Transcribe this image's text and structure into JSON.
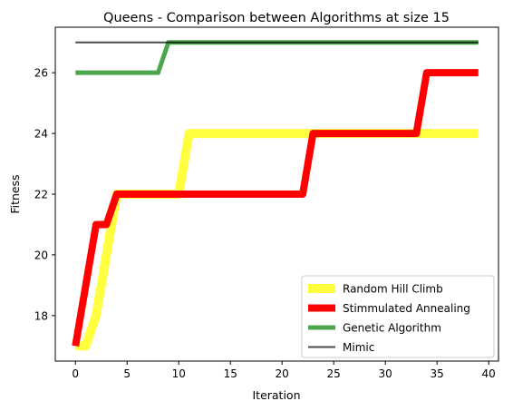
{
  "chart_data": {
    "type": "line",
    "title": "Queens - Comparison between Algorithms at size 15",
    "xlabel": "Iteration",
    "ylabel": "Fitness",
    "xlim": [
      -1.95,
      40.95
    ],
    "ylim": [
      16.5,
      27.5
    ],
    "xticks": [
      0,
      5,
      10,
      15,
      20,
      25,
      30,
      35,
      40
    ],
    "yticks": [
      18,
      20,
      22,
      24,
      26
    ],
    "grid": false,
    "legend_position": "lower right",
    "series": [
      {
        "name": "Random Hill Climb",
        "color": "#ffff00",
        "opacity": 0.75,
        "x": [
          0,
          1,
          2,
          3,
          4,
          5,
          6,
          7,
          8,
          9,
          10,
          11,
          12,
          13,
          14,
          15,
          16,
          17,
          18,
          19,
          20,
          21,
          22,
          23,
          24,
          25,
          26,
          27,
          28,
          29,
          30,
          31,
          32,
          33,
          34,
          35,
          36,
          37,
          38,
          39
        ],
        "y": [
          17,
          17,
          18,
          20,
          22,
          22,
          22,
          22,
          22,
          22,
          22,
          24,
          24,
          24,
          24,
          24,
          24,
          24,
          24,
          24,
          24,
          24,
          24,
          24,
          24,
          24,
          24,
          24,
          24,
          24,
          24,
          24,
          24,
          24,
          24,
          24,
          24,
          24,
          24,
          24
        ]
      },
      {
        "name": "Stimmulated Annealing",
        "color": "#ff0000",
        "opacity": 1,
        "x": [
          0,
          1,
          2,
          3,
          4,
          5,
          6,
          7,
          8,
          9,
          10,
          11,
          12,
          13,
          14,
          15,
          16,
          17,
          18,
          19,
          20,
          21,
          22,
          23,
          24,
          25,
          26,
          27,
          28,
          29,
          30,
          31,
          32,
          33,
          34,
          35,
          36,
          37,
          38,
          39
        ],
        "y": [
          17,
          19,
          21,
          21,
          22,
          22,
          22,
          22,
          22,
          22,
          22,
          22,
          22,
          22,
          22,
          22,
          22,
          22,
          22,
          22,
          22,
          22,
          22,
          24,
          24,
          24,
          24,
          24,
          24,
          24,
          24,
          24,
          24,
          24,
          26,
          26,
          26,
          26,
          26,
          26
        ]
      },
      {
        "name": "Genetic Algorithm",
        "color": "#008000",
        "opacity": 0.7,
        "x": [
          0,
          1,
          2,
          3,
          4,
          5,
          6,
          7,
          8,
          9,
          10,
          11,
          12,
          13,
          14,
          15,
          16,
          17,
          18,
          19,
          20,
          21,
          22,
          23,
          24,
          25,
          26,
          27,
          28,
          29,
          30,
          31,
          32,
          33,
          34,
          35,
          36,
          37,
          38,
          39
        ],
        "y": [
          26,
          26,
          26,
          26,
          26,
          26,
          26,
          26,
          26,
          27,
          27,
          27,
          27,
          27,
          27,
          27,
          27,
          27,
          27,
          27,
          27,
          27,
          27,
          27,
          27,
          27,
          27,
          27,
          27,
          27,
          27,
          27,
          27,
          27,
          27,
          27,
          27,
          27,
          27,
          27
        ]
      },
      {
        "name": "Mimic",
        "color": "#000000",
        "opacity": 0.7,
        "x": [
          0,
          1,
          2,
          3,
          4,
          5,
          6,
          7,
          8,
          9,
          10,
          11,
          12,
          13,
          14,
          15,
          16,
          17,
          18,
          19,
          20,
          21,
          22,
          23,
          24,
          25,
          26,
          27,
          28,
          29,
          30,
          31,
          32,
          33,
          34,
          35,
          36,
          37,
          38,
          39
        ],
        "y": [
          27,
          27,
          27,
          27,
          27,
          27,
          27,
          27,
          27,
          27,
          27,
          27,
          27,
          27,
          27,
          27,
          27,
          27,
          27,
          27,
          27,
          27,
          27,
          27,
          27,
          27,
          27,
          27,
          27,
          27,
          27,
          27,
          27,
          27,
          27,
          27,
          27,
          27,
          27,
          27
        ]
      }
    ]
  }
}
